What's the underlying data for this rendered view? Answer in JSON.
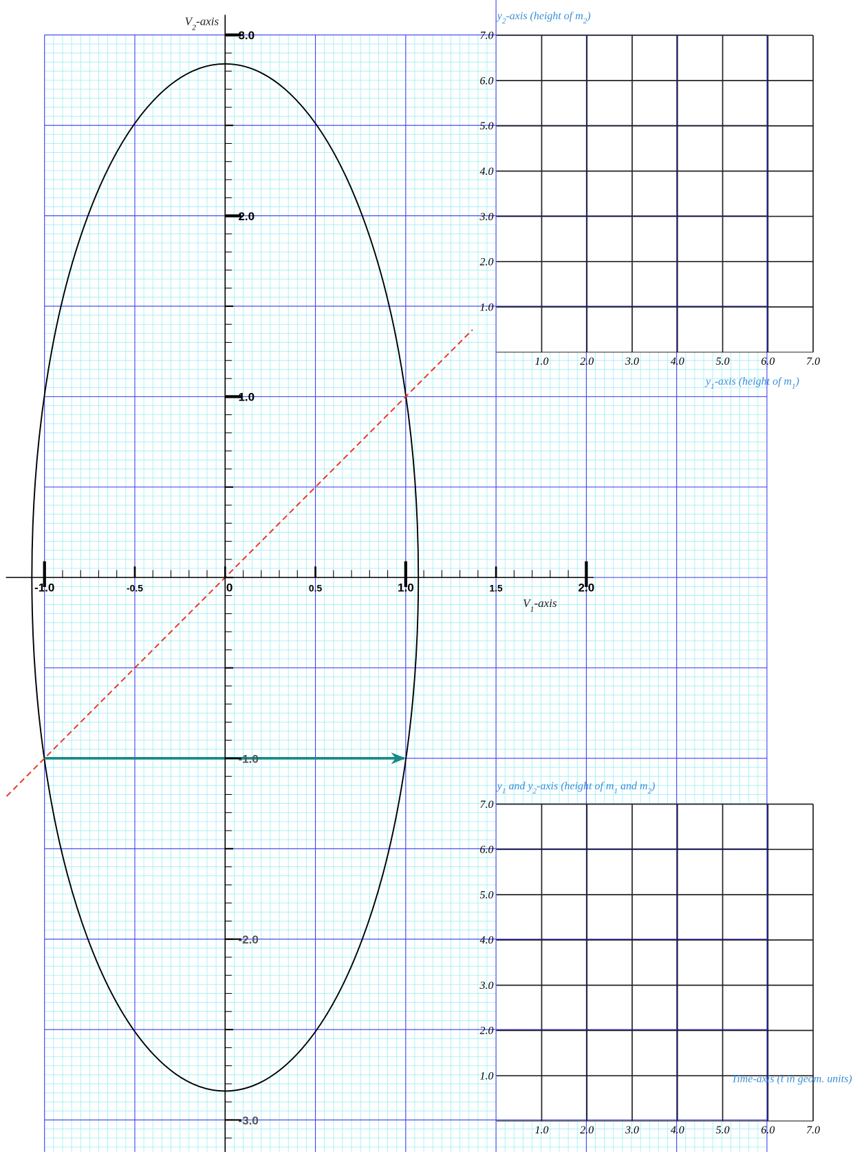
{
  "phase_plot": {
    "v1_axis_title": [
      "V",
      "1",
      "-axis"
    ],
    "v2_axis_title": [
      "V",
      "2",
      "-axis"
    ],
    "v1_tick_labels": [
      "-1.0",
      "-0.5",
      "0",
      "0.5",
      "1.0",
      "1.5",
      "2.0"
    ],
    "v2_tick_labels": [
      "3.0",
      "2.0",
      "1.0",
      "-1.0",
      "-2.0",
      "-3.0"
    ]
  },
  "top_plot": {
    "y_title": [
      "y",
      "2",
      "-axis (height of m",
      "2",
      ")"
    ],
    "x_title": [
      "y",
      "1",
      "-axis (height of m",
      "1",
      ")"
    ],
    "y_tick_labels": [
      "7.0",
      "6.0",
      "5.0",
      "4.0",
      "3.0",
      "2.0",
      "1.0"
    ],
    "x_tick_labels": [
      "1.0",
      "2.0",
      "3.0",
      "4.0",
      "5.0",
      "6.0",
      "7.0"
    ]
  },
  "bottom_plot": {
    "y_title": [
      "y",
      "1",
      " and y",
      "2",
      "-axis (height of m",
      "1",
      " and m",
      "2",
      ")"
    ],
    "x_title": "Time-axis (t in geom. units)",
    "y_tick_labels": [
      "7.0",
      "6.0",
      "5.0",
      "4.0",
      "3.0",
      "2.0",
      "1.0"
    ],
    "x_tick_labels": [
      "1.0",
      "2.0",
      "3.0",
      "4.0",
      "5.0",
      "6.0",
      "7.0"
    ]
  }
}
